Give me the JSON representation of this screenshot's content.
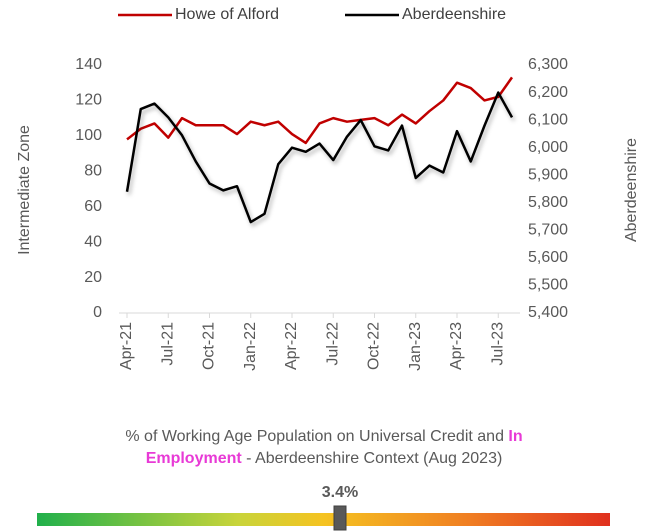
{
  "chart_data": {
    "type": "line",
    "categories": [
      "Apr-21",
      null,
      null,
      "Jul-21",
      null,
      null,
      "Oct-21",
      null,
      null,
      "Jan-22",
      null,
      null,
      "Apr-22",
      null,
      null,
      "Jul-22",
      null,
      null,
      "Oct-22",
      null,
      null,
      "Jan-23",
      null,
      null,
      "Apr-23",
      null,
      null,
      "Jul-23",
      null
    ],
    "series": [
      {
        "name": "Howe of Alford",
        "color": "#c00000",
        "axis": "y",
        "values": [
          98,
          104,
          107,
          99,
          110,
          106,
          106,
          106,
          101,
          108,
          106,
          108,
          101,
          96,
          107,
          110,
          108,
          109,
          110,
          106,
          112,
          107,
          114,
          120,
          130,
          127,
          120,
          122,
          133
        ]
      },
      {
        "name": "Aberdeenshire",
        "color": "#000000",
        "axis": "y2",
        "values": [
          5840,
          6140,
          6160,
          6110,
          6045,
          5950,
          5870,
          5845,
          5860,
          5730,
          5760,
          5940,
          6000,
          5985,
          6015,
          5955,
          6040,
          6100,
          6005,
          5990,
          6080,
          5890,
          5935,
          5910,
          6060,
          5950,
          6080,
          6200,
          6110
        ]
      }
    ],
    "ylabel": "Intermediate Zone",
    "y2label": "Aberdeenshire",
    "ylim": [
      0,
      140
    ],
    "yticks": [
      0,
      20,
      40,
      60,
      80,
      100,
      120,
      140
    ],
    "y2lim": [
      5400,
      6300
    ],
    "y2ticks": [
      {
        "value": 5400,
        "label": "5,400"
      },
      {
        "value": 5500,
        "label": "5,500"
      },
      {
        "value": 5600,
        "label": "5,600"
      },
      {
        "value": 5700,
        "label": "5,700"
      },
      {
        "value": 5800,
        "label": "5,800"
      },
      {
        "value": 5900,
        "label": "5,900"
      },
      {
        "value": 6000,
        "label": "6,000"
      },
      {
        "value": 6100,
        "label": "6,100"
      },
      {
        "value": 6200,
        "label": "6,200"
      },
      {
        "value": 6300,
        "label": "6,300"
      }
    ],
    "legend": "top",
    "grid": false
  },
  "gauge": {
    "title_lines": [
      [
        {
          "text": "% of Working Age Population on Universal Credit and ",
          "highlight": false
        },
        {
          "text": "In",
          "highlight": true
        }
      ],
      [
        {
          "text": "Employment",
          "highlight": true
        },
        {
          "text": " - Aberdeenshire Context (Aug 2023)",
          "highlight": false
        }
      ]
    ],
    "value": 3.4,
    "value_label": "3.4%"
  }
}
